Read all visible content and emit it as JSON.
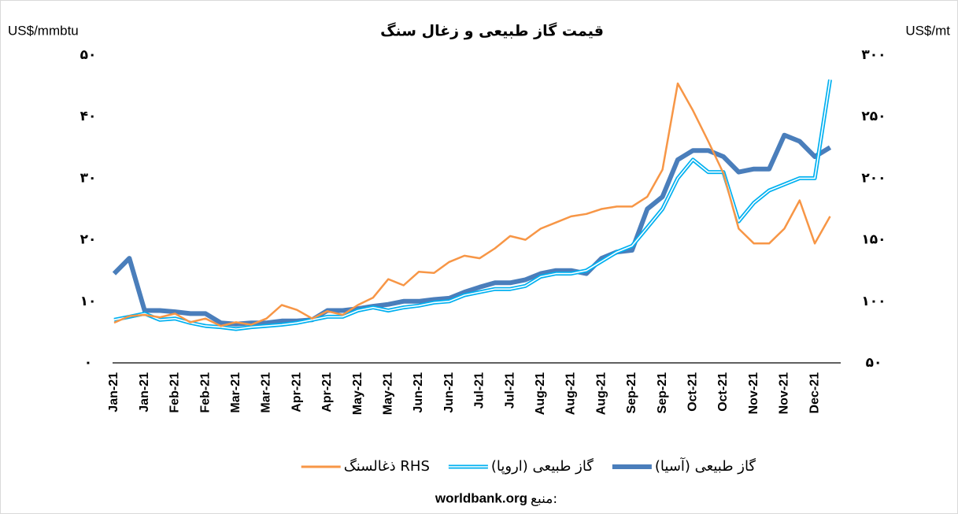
{
  "chart_data": {
    "type": "line",
    "title": "قیمت گاز طبیعی و زغال سنگ",
    "y_label": "US$/mmbtu",
    "y2_label": "US$/mt",
    "source_label": "منبع:",
    "source": "worldbank.org",
    "categories": [
      "Jan-21",
      null,
      "Jan-21",
      null,
      "Feb-21",
      null,
      "Feb-21",
      null,
      "Mar-21",
      null,
      "Mar-21",
      null,
      "Apr-21",
      null,
      "Apr-21",
      null,
      "May-21",
      null,
      "May-21",
      null,
      "Jun-21",
      null,
      "Jun-21",
      null,
      "Jul-21",
      null,
      "Jul-21",
      null,
      "Aug-21",
      null,
      "Aug-21",
      null,
      "Aug-21",
      null,
      "Sep-21",
      null,
      "Sep-21",
      null,
      "Oct-21",
      null,
      "Oct-21",
      null,
      "Nov-21",
      null,
      "Nov-21",
      null,
      "Dec-21",
      null
    ],
    "ylim": [
      0,
      50
    ],
    "yticks": [
      {
        "value": 0,
        "label": "۰"
      },
      {
        "value": 10,
        "label": "۱۰"
      },
      {
        "value": 20,
        "label": "۲۰"
      },
      {
        "value": 30,
        "label": "۳۰"
      },
      {
        "value": 40,
        "label": "۴۰"
      },
      {
        "value": 50,
        "label": "۵۰"
      }
    ],
    "y2lim": [
      50,
      300
    ],
    "y2ticks": [
      {
        "value": 50,
        "label": "۵۰"
      },
      {
        "value": 100,
        "label": "۱۰۰"
      },
      {
        "value": 150,
        "label": "۱۵۰"
      },
      {
        "value": 200,
        "label": "۲۰۰"
      },
      {
        "value": 250,
        "label": "۲۵۰"
      },
      {
        "value": 300,
        "label": "۳۰۰"
      }
    ],
    "legend": "bottom",
    "series": [
      {
        "name": "گاز طبیعی (آسیا)",
        "color": "#4a7ebb",
        "style": "thick",
        "values": [
          14.5,
          17,
          8.5,
          8.5,
          8.3,
          8.0,
          8,
          6.5,
          6.3,
          6.5,
          6.5,
          6.8,
          6.8,
          7.0,
          8.5,
          8.5,
          8.8,
          9.2,
          9.5,
          10,
          10,
          10.3,
          10.5,
          11.5,
          12.3,
          13,
          13,
          13.5,
          14.5,
          15,
          15,
          14.5,
          17,
          18,
          18.3,
          25,
          27,
          33,
          34.5,
          34.5,
          33.5,
          31,
          31.5,
          31.5,
          37,
          36,
          33.5,
          35
        ]
      },
      {
        "name": "گاز طبیعی (اروپا)",
        "color": "#00b0f0",
        "style": "double",
        "values": [
          7.0,
          7.5,
          8.0,
          7.0,
          7.2,
          6.5,
          6.0,
          5.8,
          5.5,
          5.8,
          6,
          6.2,
          6.5,
          7,
          7.5,
          7.5,
          8.5,
          9.0,
          8.5,
          9,
          9.3,
          9.8,
          10,
          11,
          11.5,
          12,
          12,
          12.5,
          14,
          14.5,
          14.5,
          15,
          16.5,
          18,
          19,
          22,
          25,
          30,
          33,
          31,
          31,
          23,
          26,
          28,
          29,
          30,
          30,
          46
        ]
      },
      {
        "name": "ذغالسنگ RHS",
        "color": "#f79646",
        "style": "thin",
        "axis": "y2",
        "values": [
          82.6,
          88,
          89,
          87,
          90,
          83,
          86,
          80,
          83,
          81,
          86,
          97,
          93,
          86,
          92,
          89,
          97,
          103,
          118,
          113,
          124,
          123,
          132,
          137,
          135,
          143,
          153,
          150,
          159,
          164,
          169,
          171,
          175,
          177,
          177,
          185,
          207,
          277,
          255,
          230,
          204,
          159,
          147,
          147,
          159,
          182,
          147,
          169
        ]
      }
    ]
  }
}
